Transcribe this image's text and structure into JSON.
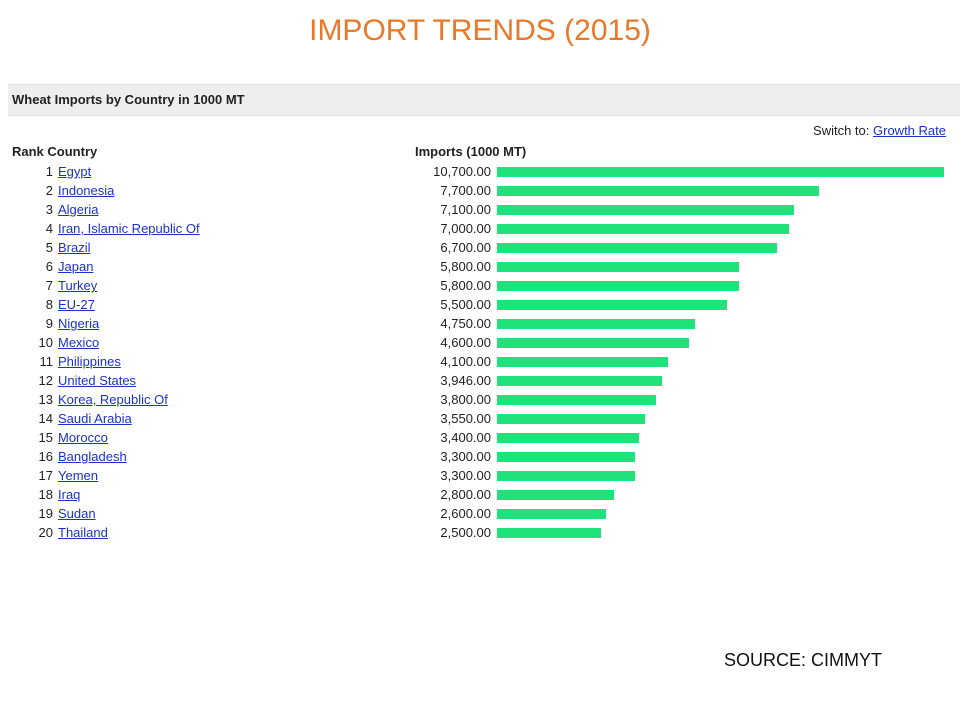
{
  "slide": {
    "title": "IMPORT TRENDS (2015)",
    "source": "SOURCE: CIMMYT"
  },
  "panel": {
    "title": "Wheat Imports by Country in 1000 MT",
    "switch_prefix": "Switch to:",
    "switch_link": "Growth Rate",
    "col_rank_country": "Rank Country",
    "col_imports": "Imports (1000 MT)"
  },
  "colors": {
    "bar": "#1ee27a",
    "title": "#e8792a",
    "link": "#1a33c8"
  },
  "chart_data": {
    "type": "bar",
    "title": "Wheat Imports by Country in 1000 MT",
    "ylabel": "Imports (1000 MT)",
    "orientation": "horizontal",
    "xlim": [
      0,
      10700
    ],
    "rows": [
      {
        "rank": "1",
        "country": "Egypt",
        "value": 10700,
        "label": "10,700.00"
      },
      {
        "rank": "2",
        "country": "Indonesia",
        "value": 7700,
        "label": "7,700.00"
      },
      {
        "rank": "3",
        "country": "Algeria",
        "value": 7100,
        "label": "7,100.00"
      },
      {
        "rank": "4",
        "country": "Iran, Islamic Republic Of",
        "value": 7000,
        "label": "7,000.00"
      },
      {
        "rank": "5",
        "country": "Brazil",
        "value": 6700,
        "label": "6,700.00"
      },
      {
        "rank": "6",
        "country": "Japan",
        "value": 5800,
        "label": "5,800.00"
      },
      {
        "rank": "7",
        "country": "Turkey",
        "value": 5800,
        "label": "5,800.00"
      },
      {
        "rank": "8",
        "country": "EU-27",
        "value": 5500,
        "label": "5,500.00"
      },
      {
        "rank": "9",
        "country": "Nigeria",
        "value": 4750,
        "label": "4,750.00"
      },
      {
        "rank": "10",
        "country": "Mexico",
        "value": 4600,
        "label": "4,600.00"
      },
      {
        "rank": "11",
        "country": "Philippines",
        "value": 4100,
        "label": "4,100.00"
      },
      {
        "rank": "12",
        "country": "United States",
        "value": 3946,
        "label": "3,946.00"
      },
      {
        "rank": "13",
        "country": "Korea, Republic Of",
        "value": 3800,
        "label": "3,800.00"
      },
      {
        "rank": "14",
        "country": "Saudi Arabia",
        "value": 3550,
        "label": "3,550.00"
      },
      {
        "rank": "15",
        "country": "Morocco",
        "value": 3400,
        "label": "3,400.00"
      },
      {
        "rank": "16",
        "country": "Bangladesh",
        "value": 3300,
        "label": "3,300.00"
      },
      {
        "rank": "17",
        "country": "Yemen",
        "value": 3300,
        "label": "3,300.00"
      },
      {
        "rank": "18",
        "country": "Iraq",
        "value": 2800,
        "label": "2,800.00"
      },
      {
        "rank": "19",
        "country": "Sudan",
        "value": 2600,
        "label": "2,600.00"
      },
      {
        "rank": "20",
        "country": "Thailand",
        "value": 2500,
        "label": "2,500.00"
      }
    ]
  }
}
